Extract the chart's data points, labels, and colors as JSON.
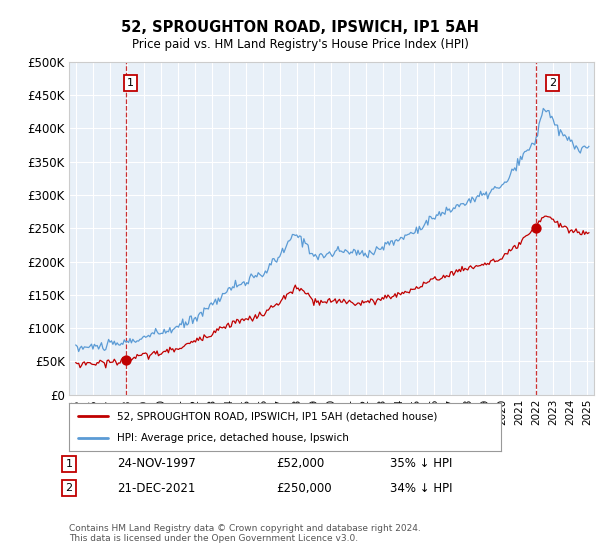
{
  "title": "52, SPROUGHTON ROAD, IPSWICH, IP1 5AH",
  "subtitle": "Price paid vs. HM Land Registry's House Price Index (HPI)",
  "legend_line1": "52, SPROUGHTON ROAD, IPSWICH, IP1 5AH (detached house)",
  "legend_line2": "HPI: Average price, detached house, Ipswich",
  "annotation1": {
    "label": "1",
    "date": "24-NOV-1997",
    "price": "£52,000",
    "pct": "35% ↓ HPI"
  },
  "annotation2": {
    "label": "2",
    "date": "21-DEC-2021",
    "price": "£250,000",
    "pct": "34% ↓ HPI"
  },
  "footnote": "Contains HM Land Registry data © Crown copyright and database right 2024.\nThis data is licensed under the Open Government Licence v3.0.",
  "hpi_color": "#5b9bd5",
  "price_color": "#c00000",
  "marker_color": "#c00000",
  "point1_x": 1997.92,
  "point1_y": 52000,
  "point2_x": 2021.97,
  "point2_y": 250000,
  "ylim": [
    0,
    500000
  ],
  "xlim_start": 1994.6,
  "xlim_end": 2025.4,
  "yticks": [
    0,
    50000,
    100000,
    150000,
    200000,
    250000,
    300000,
    350000,
    400000,
    450000,
    500000
  ],
  "ytick_labels": [
    "£0",
    "£50K",
    "£100K",
    "£150K",
    "£200K",
    "£250K",
    "£300K",
    "£350K",
    "£400K",
    "£450K",
    "£500K"
  ],
  "chart_bg": "#e8f0f8",
  "background_color": "#ffffff",
  "grid_color": "#ffffff"
}
